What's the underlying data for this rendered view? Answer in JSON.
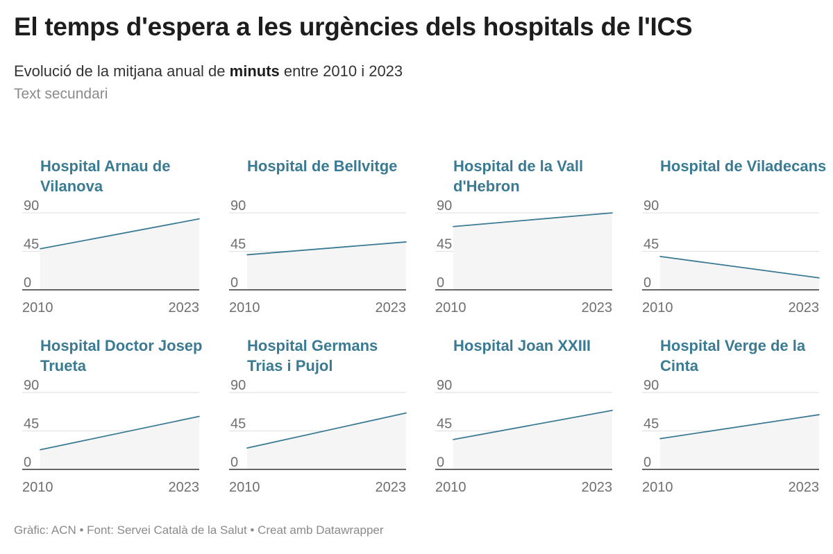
{
  "title": "El temps d'espera a les urgències dels hospitals de l'ICS",
  "subtitle_before": "Evolució de la mitjana anual de ",
  "subtitle_bold": "minuts",
  "subtitle_after": " entre 2010 i 2023",
  "secondary_text": "Text secundari",
  "footer": "Gràfic: ACN • Font: Servei Català de la Salut • Creat amb Datawrapper",
  "colors": {
    "line": "#3a7a93",
    "area": "#f5f5f5",
    "grid": "#dddddd",
    "baseline": "#333333",
    "panel_title": "#3a7a93"
  },
  "chart_data": [
    {
      "type": "area",
      "title": "Hospital Arnau de Vilanova",
      "x": [
        2010,
        2023
      ],
      "y": [
        48,
        83
      ],
      "yticks": [
        0,
        45,
        90
      ],
      "ylim": [
        0,
        90
      ],
      "xticks": [
        "2010",
        "2023"
      ]
    },
    {
      "type": "area",
      "title": "Hospital de Bellvitge",
      "x": [
        2010,
        2023
      ],
      "y": [
        41,
        56
      ],
      "yticks": [
        0,
        45,
        90
      ],
      "ylim": [
        0,
        90
      ],
      "xticks": [
        "2010",
        "2023"
      ]
    },
    {
      "type": "area",
      "title": "Hospital de la Vall d'Hebron",
      "x": [
        2010,
        2023
      ],
      "y": [
        74,
        90
      ],
      "yticks": [
        0,
        45,
        90
      ],
      "ylim": [
        0,
        90
      ],
      "xticks": [
        "2010",
        "2023"
      ]
    },
    {
      "type": "area",
      "title": "Hospital de Viladecans",
      "x": [
        2010,
        2023
      ],
      "y": [
        39,
        14
      ],
      "yticks": [
        0,
        45,
        90
      ],
      "ylim": [
        0,
        90
      ],
      "xticks": [
        "2010",
        "2023"
      ]
    },
    {
      "type": "area",
      "title": "Hospital Doctor Josep Trueta",
      "x": [
        2010,
        2023
      ],
      "y": [
        23,
        62
      ],
      "yticks": [
        0,
        45,
        90
      ],
      "ylim": [
        0,
        90
      ],
      "xticks": [
        "2010",
        "2023"
      ]
    },
    {
      "type": "area",
      "title": "Hospital Germans Trias i Pujol",
      "x": [
        2010,
        2023
      ],
      "y": [
        25,
        66
      ],
      "yticks": [
        0,
        45,
        90
      ],
      "ylim": [
        0,
        90
      ],
      "xticks": [
        "2010",
        "2023"
      ]
    },
    {
      "type": "area",
      "title": "Hospital Joan XXIII",
      "x": [
        2010,
        2023
      ],
      "y": [
        35,
        69
      ],
      "yticks": [
        0,
        45,
        90
      ],
      "ylim": [
        0,
        90
      ],
      "xticks": [
        "2010",
        "2023"
      ]
    },
    {
      "type": "area",
      "title": "Hospital Verge de la Cinta",
      "x": [
        2010,
        2023
      ],
      "y": [
        36,
        64
      ],
      "yticks": [
        0,
        45,
        90
      ],
      "ylim": [
        0,
        90
      ],
      "xticks": [
        "2010",
        "2023"
      ]
    }
  ]
}
